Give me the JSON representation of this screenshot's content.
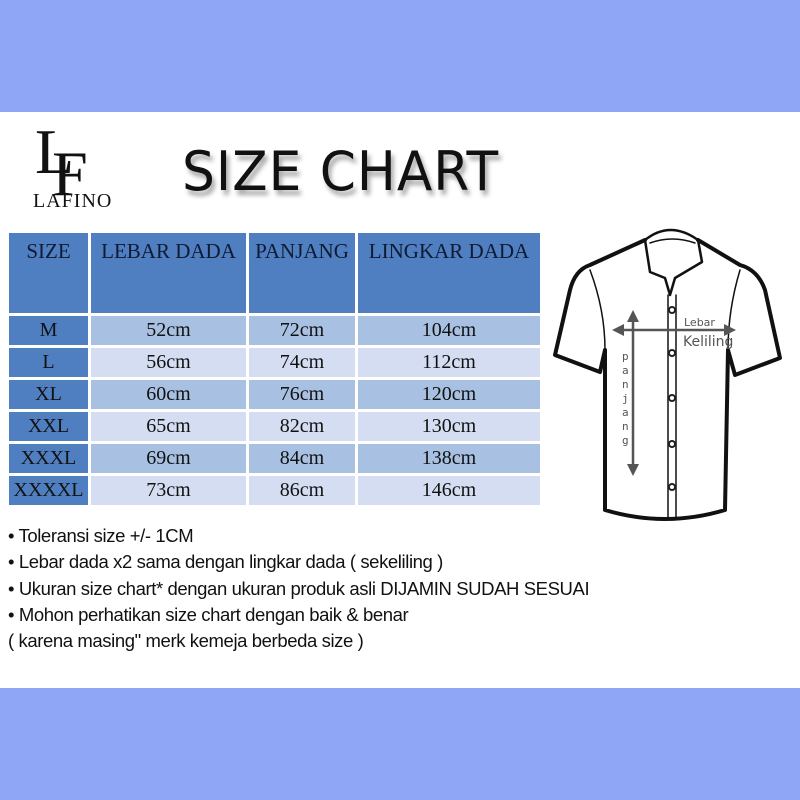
{
  "brand": {
    "logo_mark": "LF",
    "name": "LAFINO"
  },
  "title": "SIZE CHART",
  "colors": {
    "band": "#8fa6f7",
    "header": "#4f7fc1",
    "row_dark": "#a8c1e3",
    "row_light": "#d4ddf1"
  },
  "table": {
    "headers": [
      "SIZE",
      "LEBAR DADA",
      "PANJANG",
      "LINGKAR DADA"
    ],
    "rows": [
      [
        "M",
        "52cm",
        "72cm",
        "104cm"
      ],
      [
        "L",
        "56cm",
        "74cm",
        "112cm"
      ],
      [
        "XL",
        "60cm",
        "76cm",
        "120cm"
      ],
      [
        "XXL",
        "65cm",
        "82cm",
        "130cm"
      ],
      [
        "XXXL",
        "69cm",
        "84cm",
        "138cm"
      ],
      [
        "XXXXL",
        "73cm",
        "86cm",
        "146cm"
      ]
    ]
  },
  "diagram": {
    "labels": {
      "lebar": "Lebar",
      "keliling": "Keliling",
      "panjang": "panjang"
    }
  },
  "notes": [
    "• Toleransi size +/- 1CM",
    "• Lebar dada x2 sama dengan lingkar dada ( sekeliling )",
    "• Ukuran size chart* dengan ukuran produk asli DIJAMIN SUDAH SESUAI",
    "• Mohon perhatikan size chart dengan baik & benar",
    "( karena masing\" merk kemeja berbeda size )"
  ]
}
